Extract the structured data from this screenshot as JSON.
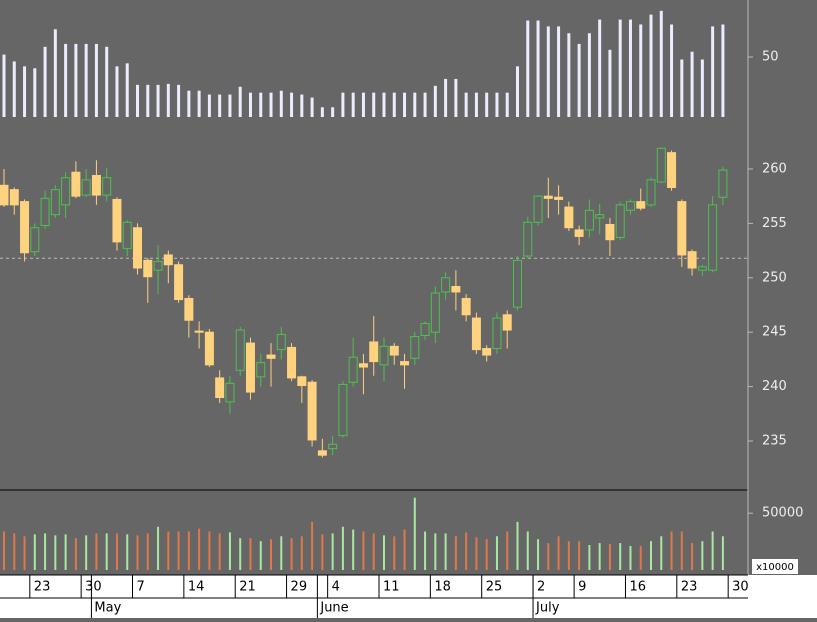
{
  "chart_data": [
    {
      "type": "bar",
      "color": "#ececff",
      "ylim": [
        0,
        95
      ],
      "yticks": [
        50
      ],
      "values": [
        52,
        46.3,
        42.2,
        40.6,
        58.5,
        73.1,
        60.9,
        60.9,
        60.9,
        60.9,
        58.5,
        42.2,
        44.7,
        26.8,
        26.8,
        26.8,
        27.6,
        26.8,
        21.9,
        21.9,
        18.7,
        18.7,
        18.7,
        25.2,
        20.3,
        20.3,
        20.3,
        21.9,
        20.3,
        18.7,
        16.2,
        8.1,
        8.1,
        20.3,
        20.3,
        20.3,
        20.3,
        20.3,
        20.3,
        20.3,
        20.3,
        20.3,
        26,
        31.7,
        31.7,
        20.3,
        20.3,
        20.3,
        20.3,
        20.3,
        42.2,
        80.4,
        80.4,
        75.5,
        75.5,
        69.8,
        60.9,
        69.8,
        81.2,
        56,
        81.2,
        81.2,
        77.1,
        85.3,
        88.5,
        77.1,
        47.9,
        54.4,
        47.9,
        75.5,
        77.1,
        null
      ]
    },
    {
      "type": "candlestick",
      "up_color": "#4cc24c",
      "down_color": "#ffd27f",
      "ylim": [
        230.5,
        264.5
      ],
      "yticks": [
        235,
        240,
        245,
        250,
        255,
        260
      ],
      "reference_line": 251.8,
      "categories": [
        null,
        null,
        null,
        "23",
        null,
        null,
        null,
        null,
        "30",
        null,
        null,
        null,
        null,
        "7",
        null,
        null,
        null,
        null,
        "14",
        null,
        null,
        null,
        null,
        "21",
        null,
        null,
        null,
        null,
        "29",
        null,
        null,
        null,
        "4",
        null,
        null,
        null,
        null,
        "11",
        null,
        null,
        null,
        null,
        "18",
        null,
        null,
        null,
        null,
        "25",
        null,
        null,
        null,
        null,
        "2",
        null,
        null,
        null,
        "9",
        null,
        null,
        null,
        null,
        "16",
        null,
        null,
        null,
        null,
        "23",
        null,
        null,
        null,
        null,
        "30"
      ],
      "months": [
        null,
        null,
        null,
        null,
        null,
        null,
        null,
        null,
        null,
        "May",
        null,
        null,
        null,
        null,
        null,
        null,
        null,
        null,
        null,
        null,
        null,
        null,
        null,
        null,
        null,
        null,
        null,
        null,
        null,
        null,
        null,
        "June",
        null,
        null,
        null,
        null,
        null,
        null,
        null,
        null,
        null,
        null,
        null,
        null,
        null,
        null,
        null,
        null,
        null,
        null,
        null,
        null,
        "July",
        null,
        null,
        null,
        null,
        null,
        null,
        null,
        null,
        null,
        null,
        null,
        null,
        null,
        null,
        null,
        null,
        null,
        null,
        null
      ],
      "open": [
        258.5,
        258.1,
        257,
        252.4,
        254.8,
        255.8,
        256.7,
        259.7,
        257.6,
        259.4,
        257.6,
        257.2,
        252.7,
        254.6,
        251.6,
        250.7,
        252.1,
        251.2,
        248.1,
        245.1,
        245,
        240.8,
        238.6,
        241.5,
        244,
        240.9,
        242.9,
        243.4,
        243.6,
        240.9,
        240.4,
        234.1,
        234.3,
        235.5,
        240.4,
        242.1,
        244.1,
        242,
        243.7,
        242.3,
        242.6,
        244.7,
        245,
        248.7,
        249.2,
        248.1,
        246.3,
        243.5,
        243.5,
        246.6,
        247.3,
        252,
        255.1,
        257.5,
        257.4,
        256.5,
        254.4,
        254.4,
        255.5,
        254.9,
        253.7,
        256.2,
        257,
        256.7,
        258.8,
        261.5,
        257,
        252.4,
        250.7,
        250.7,
        257.4,
        null
      ],
      "high": [
        260,
        258.3,
        257.2,
        255,
        258,
        258.5,
        259.7,
        260.7,
        260,
        260.8,
        260.1,
        257.4,
        255.3,
        255,
        251.8,
        253,
        252.5,
        251.5,
        248.4,
        246,
        245.3,
        241.5,
        241,
        245.5,
        244.5,
        243,
        244,
        245.5,
        244,
        241,
        240.6,
        235.2,
        235.5,
        240.5,
        244.5,
        243,
        246.5,
        244.5,
        244,
        243,
        245,
        246,
        249.2,
        250.5,
        250.7,
        248.5,
        246.8,
        243.8,
        246.8,
        247,
        252,
        255.6,
        257.6,
        259.2,
        258.5,
        257,
        254.8,
        257.2,
        256.8,
        255.5,
        257,
        257.2,
        258.2,
        259.2,
        262,
        261.7,
        257.2,
        252.6,
        251.2,
        257.5,
        260.2,
        null
      ],
      "low": [
        256.5,
        255.8,
        251.5,
        252,
        254.5,
        255.5,
        255.5,
        257.3,
        257.4,
        256.7,
        257,
        252.5,
        252,
        250.3,
        247.7,
        248.5,
        249.5,
        247.7,
        244.5,
        243.5,
        241.8,
        238.5,
        237.5,
        241,
        238.8,
        240,
        240,
        242.5,
        240.5,
        238.5,
        234.5,
        233.5,
        233.7,
        235.3,
        240,
        239.3,
        241,
        240.5,
        242,
        239.8,
        242,
        244.3,
        244,
        248,
        247,
        246,
        243,
        242.3,
        243,
        243.5,
        247,
        251.8,
        254.8,
        255.5,
        255.8,
        254.3,
        253,
        253.7,
        254,
        252,
        253.5,
        255.8,
        256.2,
        256.5,
        258.7,
        258,
        251,
        250.2,
        250.2,
        250.5,
        256.7,
        null
      ],
      "close": [
        256.7,
        256.7,
        252.3,
        254.6,
        257.3,
        258.1,
        259.2,
        257.5,
        259,
        257.6,
        259.2,
        253.3,
        255.1,
        250.9,
        250.1,
        251.5,
        251.2,
        248,
        246.1,
        245,
        242,
        239,
        240.3,
        245.2,
        239.5,
        242.2,
        242.6,
        244.8,
        240.8,
        240.1,
        235.1,
        233.7,
        234.7,
        240.2,
        242.7,
        241.8,
        242.3,
        243.7,
        242.9,
        242,
        244.6,
        245.8,
        248.6,
        250,
        248.7,
        246.6,
        243.4,
        242.9,
        246.3,
        245.2,
        251.6,
        255.1,
        257.5,
        257.3,
        257.2,
        254.6,
        253.8,
        256.2,
        255.8,
        253.5,
        256.7,
        257,
        256.4,
        259,
        261.9,
        258.3,
        252.1,
        250.9,
        251,
        256.7,
        259.9,
        null
      ]
    },
    {
      "type": "volume",
      "up_color": "#a8e8a0",
      "down_color": "#e0784a",
      "ylim": [
        0,
        67800
      ],
      "yticks": [
        50000
      ],
      "unit_label": "x10000",
      "values": [
        33900,
        32200,
        29700,
        31400,
        32200,
        30500,
        31400,
        28000,
        30500,
        32200,
        32200,
        32200,
        31400,
        30500,
        32200,
        38100,
        33900,
        33900,
        33900,
        36400,
        33900,
        32200,
        33100,
        28000,
        28000,
        25400,
        27100,
        29700,
        28000,
        29700,
        42400,
        31400,
        32200,
        38100,
        35600,
        33900,
        32200,
        30500,
        29700,
        35600,
        63600,
        33900,
        32200,
        32200,
        29700,
        33100,
        28800,
        27100,
        29700,
        33900,
        42400,
        33900,
        27100,
        23700,
        29700,
        25400,
        25400,
        22000,
        23700,
        22900,
        23700,
        21200,
        21200,
        25400,
        29700,
        33900,
        33900,
        23700,
        25400,
        33900,
        29700,
        null
      ]
    }
  ]
}
